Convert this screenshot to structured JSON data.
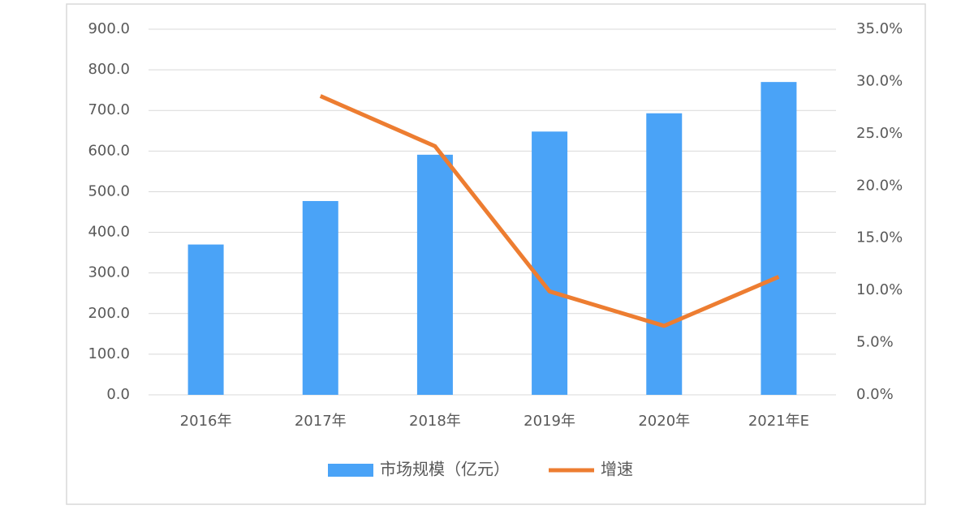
{
  "chart_data": {
    "type": "combo",
    "categories": [
      "2016年",
      "2017年",
      "2018年",
      "2019年",
      "2020年",
      "2021年E"
    ],
    "series": [
      {
        "name": "市场规模（亿元）",
        "type": "bar",
        "color": "#4aa3f7",
        "values": [
          370,
          477,
          591,
          648,
          693,
          770
        ]
      },
      {
        "name": "增速",
        "type": "line",
        "axis": "y2",
        "color": "#ed7d31",
        "values": [
          null,
          28.6,
          23.8,
          9.9,
          6.6,
          11.3
        ]
      }
    ],
    "ylim": [
      0,
      900
    ],
    "yticks": [
      {
        "value": 0,
        "label": "0.0"
      },
      {
        "value": 100,
        "label": "100.0"
      },
      {
        "value": 200,
        "label": "200.0"
      },
      {
        "value": 300,
        "label": "300.0"
      },
      {
        "value": 400,
        "label": "400.0"
      },
      {
        "value": 500,
        "label": "500.0"
      },
      {
        "value": 600,
        "label": "600.0"
      },
      {
        "value": 700,
        "label": "700.0"
      },
      {
        "value": 800,
        "label": "800.0"
      },
      {
        "value": 900,
        "label": "900.0"
      }
    ],
    "y2lim": [
      0,
      35
    ],
    "y2ticks": [
      {
        "value": 0,
        "label": "0.0%"
      },
      {
        "value": 5,
        "label": "5.0%"
      },
      {
        "value": 10,
        "label": "10.0%"
      },
      {
        "value": 15,
        "label": "15.0%"
      },
      {
        "value": 20,
        "label": "20.0%"
      },
      {
        "value": 25,
        "label": "25.0%"
      },
      {
        "value": 30,
        "label": "30.0%"
      },
      {
        "value": 35,
        "label": "35.0%"
      }
    ],
    "grid": true,
    "legend": "bottom"
  }
}
